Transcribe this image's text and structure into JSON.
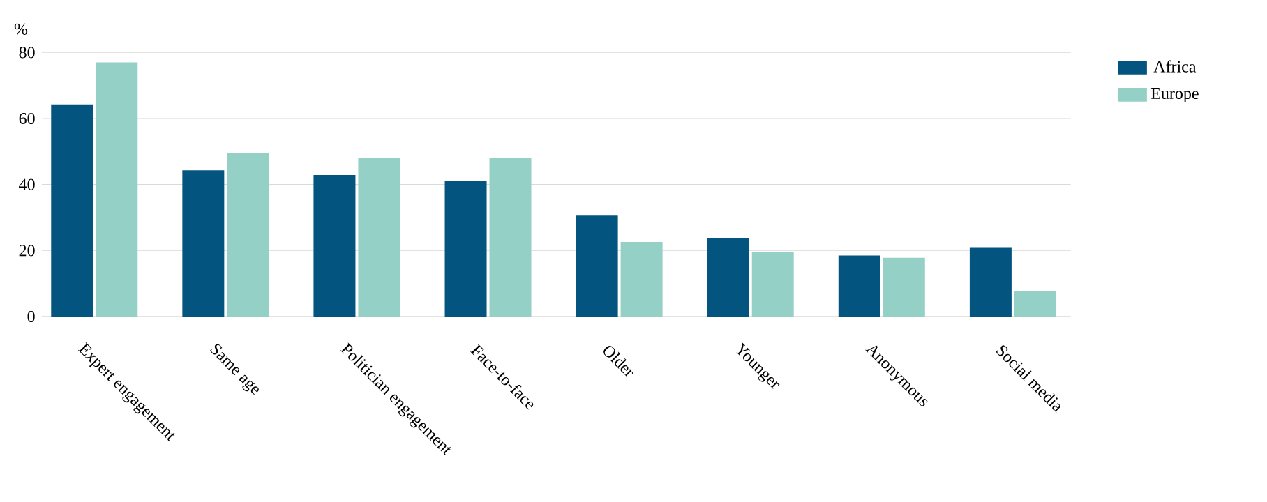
{
  "chart_data": {
    "type": "bar",
    "ylabel": "%",
    "categories": [
      "Expert engagement",
      "Same age",
      "Politician engagement",
      "Face-to-face",
      "Older",
      "Younger",
      "Anonymous",
      "Social media"
    ],
    "series": [
      {
        "name": "Africa",
        "color": "#03557f",
        "values": [
          64.3,
          44.3,
          42.9,
          41.2,
          30.6,
          23.7,
          18.5,
          21.0
        ]
      },
      {
        "name": "Europe",
        "color": "#94d0c5",
        "values": [
          77.0,
          49.5,
          48.1,
          48.0,
          22.6,
          19.5,
          17.8,
          7.7
        ]
      }
    ],
    "ylim": [
      0,
      80
    ],
    "yticks": [
      0,
      20,
      40,
      60,
      80
    ],
    "grid": "y",
    "legend": "right"
  }
}
